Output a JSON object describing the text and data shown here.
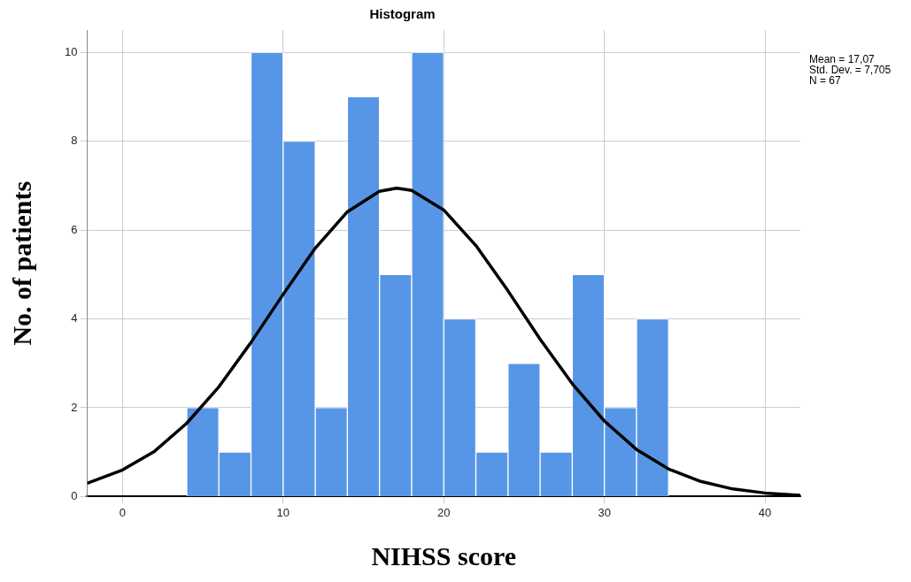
{
  "chart_data": {
    "type": "histogram",
    "title": "Histogram",
    "xlabel": "NIHSS score",
    "ylabel": "No. of patients",
    "bins": [
      4,
      6,
      8,
      10,
      12,
      14,
      16,
      18,
      20,
      22,
      24,
      26,
      28,
      30,
      32,
      34
    ],
    "values": [
      2,
      1,
      10,
      8,
      2,
      9,
      5,
      10,
      4,
      1,
      3,
      1,
      5,
      2,
      4
    ],
    "color": "#5796e6",
    "series": [
      {
        "type": "line",
        "color": "#000000",
        "x": [
          -2.2,
          0,
          2,
          4,
          6,
          8,
          10,
          12,
          14,
          16,
          17.07,
          18,
          20,
          22,
          24,
          26,
          28,
          30,
          32,
          34,
          36,
          38,
          40,
          42.2
        ],
        "values": [
          0.3,
          0.6,
          1.02,
          1.65,
          2.47,
          3.47,
          4.55,
          5.59,
          6.41,
          6.87,
          6.94,
          6.89,
          6.45,
          5.65,
          4.63,
          3.54,
          2.54,
          1.7,
          1.06,
          0.62,
          0.34,
          0.17,
          0.08,
          0.03
        ]
      }
    ],
    "xlim": [
      -2.2,
      42.2
    ],
    "xticks": [
      0,
      10,
      20,
      30,
      40
    ],
    "ylim": [
      0,
      10.5
    ],
    "yticks": [
      0,
      2,
      4,
      6,
      8,
      10
    ],
    "grid": true,
    "annotations": [
      "Mean = 17,07",
      "Std. Dev. = 7,705",
      "N = 67"
    ]
  }
}
